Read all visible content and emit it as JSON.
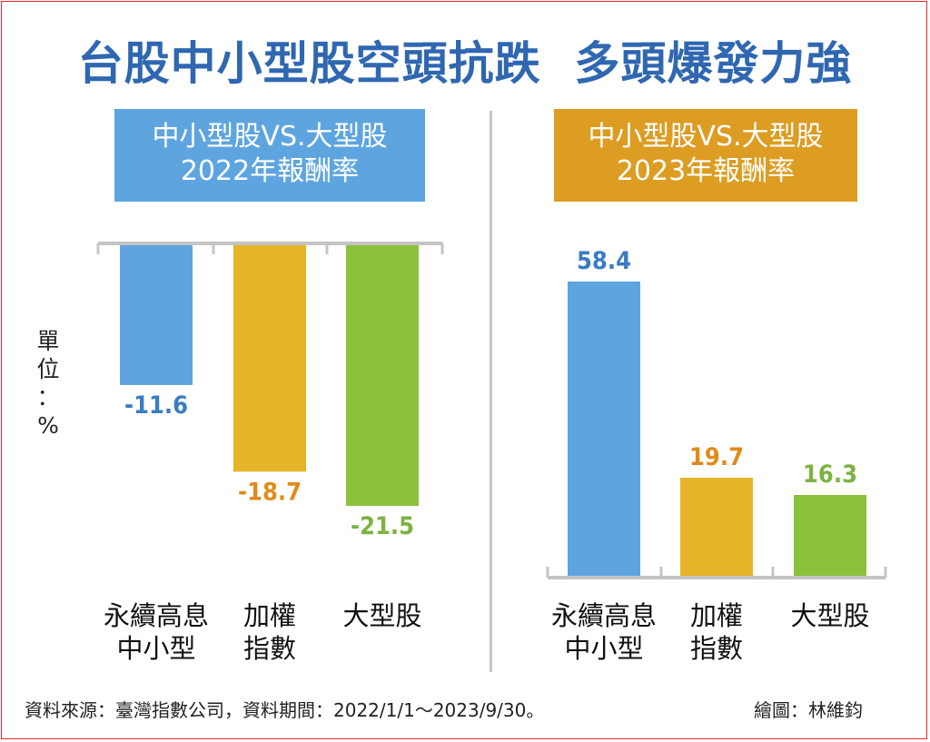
{
  "title": "台股中小型股空頭抗跌  多頭爆發力強",
  "unit": [
    "單",
    "位",
    "：",
    "%"
  ],
  "footer": {
    "source": "資料來源：臺灣指數公司，資料期間：2022/1/1～2023/9/30。",
    "credit": "繪圖：林維鈞"
  },
  "colors": {
    "title": "#2f67b1",
    "header_2022": "#5ea5e0",
    "header_2023": "#dd9c22",
    "blue_bar": "#5ea5e0",
    "gold_bar": "#e6b428",
    "green_bar": "#8cc13c",
    "blue_label": "#3a7cc4",
    "orange_label": "#e08a1c",
    "green_label": "#7cb341"
  },
  "chart_data": [
    {
      "type": "bar",
      "header": [
        "中小型股VS.大型股",
        "2022年報酬率"
      ],
      "categories": [
        [
          "永續高息",
          "中小型"
        ],
        [
          "加權",
          "指數"
        ],
        [
          "大型股"
        ]
      ],
      "values": [
        -11.6,
        -18.7,
        -21.5
      ],
      "value_labels": [
        "-11.6",
        "-18.7",
        "-21.5"
      ],
      "bar_colors": [
        "#5ea5e0",
        "#e6b428",
        "#8cc13c"
      ],
      "label_colors": [
        "#3a7cc4",
        "#e08a1c",
        "#7cb341"
      ],
      "ylabel": "單位：%",
      "grid": false
    },
    {
      "type": "bar",
      "header": [
        "中小型股VS.大型股",
        "2023年報酬率"
      ],
      "categories": [
        [
          "永續高息",
          "中小型"
        ],
        [
          "加權",
          "指數"
        ],
        [
          "大型股"
        ]
      ],
      "values": [
        58.4,
        19.7,
        16.3
      ],
      "value_labels": [
        "58.4",
        "19.7",
        "16.3"
      ],
      "bar_colors": [
        "#5ea5e0",
        "#e6b428",
        "#8cc13c"
      ],
      "label_colors": [
        "#3a7cc4",
        "#e08a1c",
        "#7cb341"
      ],
      "grid": false
    }
  ]
}
